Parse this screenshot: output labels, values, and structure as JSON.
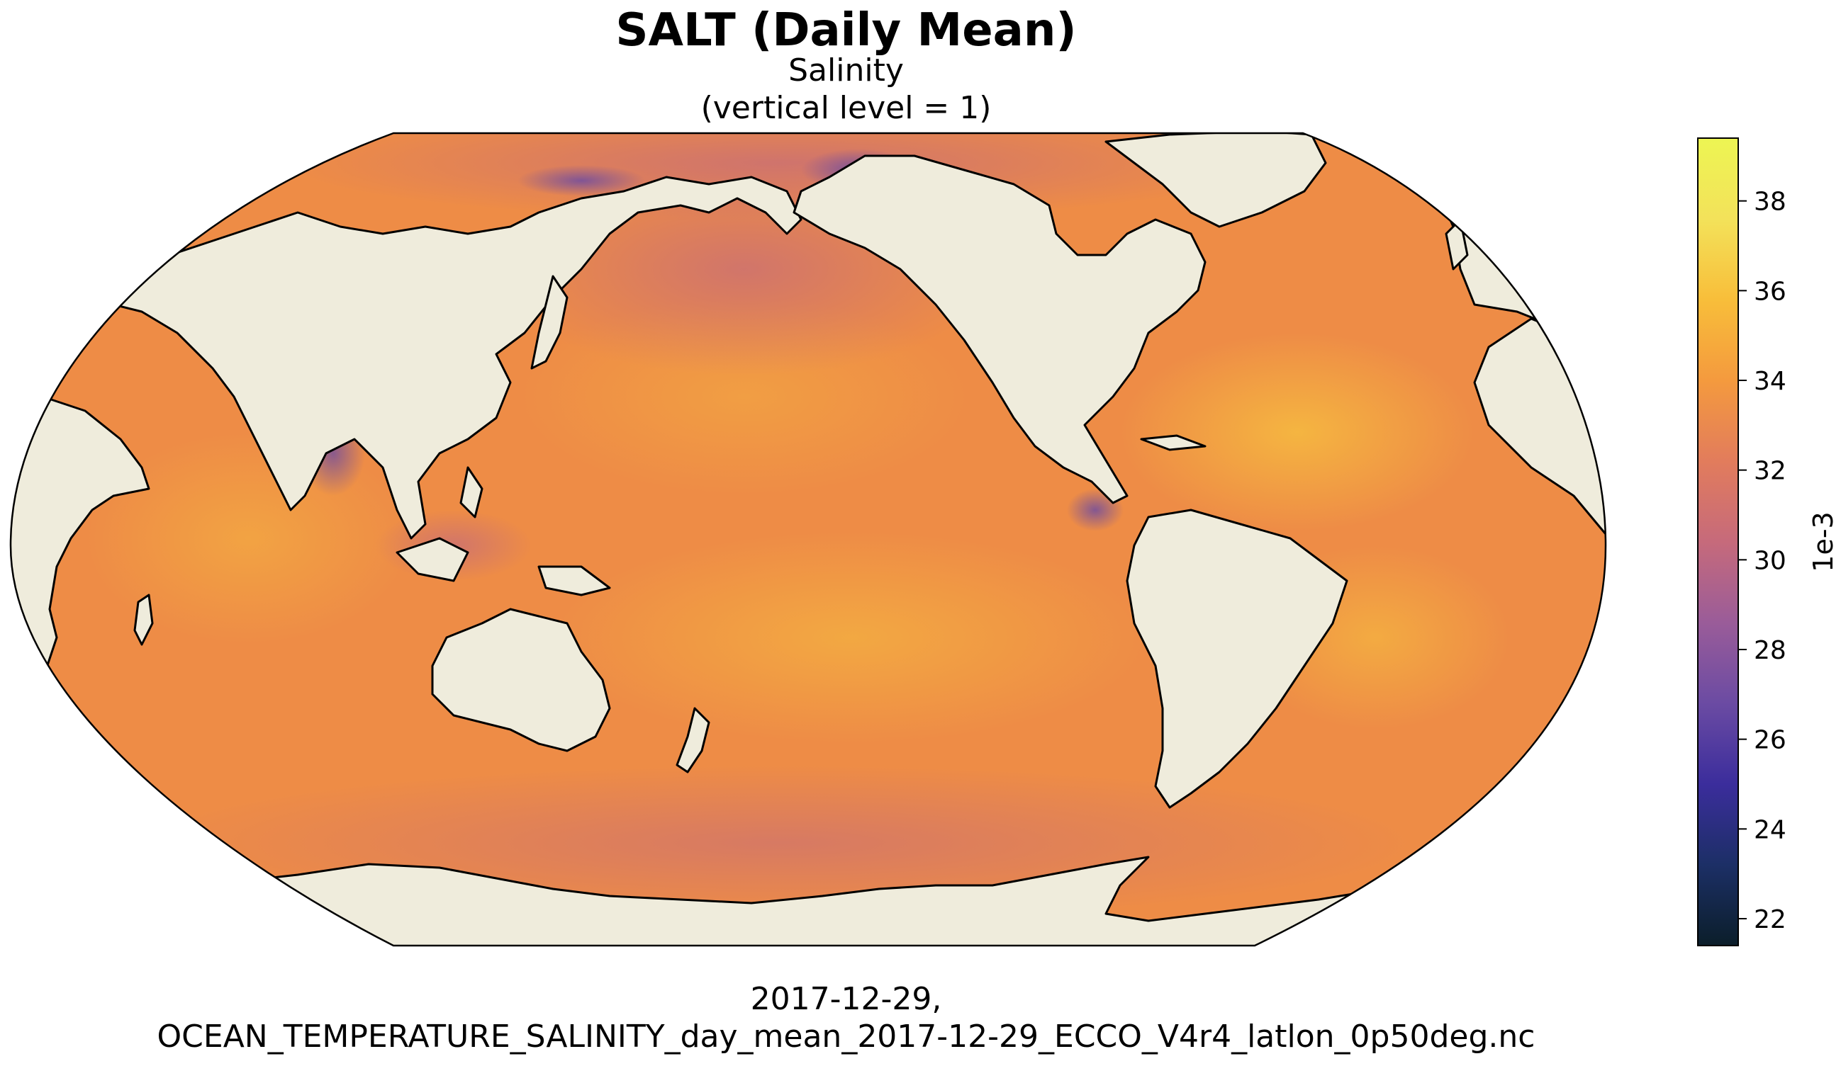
{
  "title": "SALT (Daily Mean)",
  "subtitle_line1": "Salinity",
  "subtitle_line2": "(vertical level = 1)",
  "footer_line1": "2017-12-29,",
  "footer_line2": "OCEAN_TEMPERATURE_SALINITY_day_mean_2017-12-29_ECCO_V4r4_latlon_0p50deg.nc",
  "colorbar": {
    "label": "1e-3",
    "min": 21.4,
    "max": 39.4,
    "ticks": [
      22,
      24,
      26,
      28,
      30,
      32,
      34,
      36,
      38
    ],
    "colormap": [
      "#0b1e2a",
      "#1c2f66",
      "#3b2d9c",
      "#6b4ba3",
      "#9a5c99",
      "#c66a7b",
      "#e27c5c",
      "#f49a3e",
      "#f8be3a",
      "#f3e25a",
      "#edf553"
    ]
  },
  "colors": {
    "land": "#efecdc",
    "ocean_typical": "#ef8e44",
    "coastline": "#000000"
  }
}
